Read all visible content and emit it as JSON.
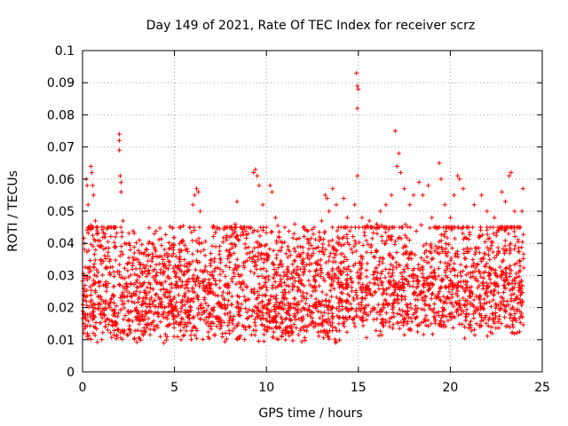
{
  "chart_data": {
    "type": "scatter",
    "title": "Day 149 of 2021, Rate Of TEC Index for receiver scrz",
    "xlabel": "GPS time / hours",
    "ylabel": "ROTI / TECUs",
    "xlim": [
      0,
      25
    ],
    "ylim": [
      0,
      0.1
    ],
    "x_ticks": [
      0,
      5,
      10,
      15,
      20,
      25
    ],
    "x_tick_labels": [
      "0",
      "5",
      "10",
      "15",
      "20",
      "25"
    ],
    "y_ticks": [
      0,
      0.01,
      0.02,
      0.03,
      0.04,
      0.05,
      0.06,
      0.07,
      0.08,
      0.09,
      0.1
    ],
    "y_tick_labels": [
      "0",
      "0.01",
      "0.02",
      "0.03",
      "0.04",
      "0.05",
      "0.06",
      "0.07",
      "0.08",
      "0.09",
      "0.1"
    ],
    "grid": true,
    "marker": "+",
    "color": "#ff0000",
    "series": [
      {
        "name": "ROTI",
        "description": "dense scatter of ROTI values, bulk between 0.008 and 0.03 TECU/min across 0–24 h",
        "points": [
          [
            0.1,
            0.025
          ],
          [
            0.2,
            0.06
          ],
          [
            0.25,
            0.058
          ],
          [
            0.3,
            0.052
          ],
          [
            0.45,
            0.064
          ],
          [
            0.5,
            0.062
          ],
          [
            0.55,
            0.058
          ],
          [
            0.6,
            0.055
          ],
          [
            0.7,
            0.047
          ],
          [
            0.8,
            0.043
          ],
          [
            1.0,
            0.039
          ],
          [
            1.2,
            0.042
          ],
          [
            1.5,
            0.035
          ],
          [
            1.8,
            0.039
          ],
          [
            2.0,
            0.074
          ],
          [
            2.0,
            0.072
          ],
          [
            2.0,
            0.069
          ],
          [
            2.05,
            0.061
          ],
          [
            2.1,
            0.059
          ],
          [
            2.1,
            0.056
          ],
          [
            2.2,
            0.047
          ],
          [
            2.3,
            0.04
          ],
          [
            2.6,
            0.038
          ],
          [
            3.0,
            0.035
          ],
          [
            3.2,
            0.037
          ],
          [
            3.5,
            0.038
          ],
          [
            3.8,
            0.04
          ],
          [
            4.0,
            0.036
          ],
          [
            4.2,
            0.036
          ],
          [
            4.5,
            0.033
          ],
          [
            5.0,
            0.031
          ],
          [
            5.3,
            0.035
          ],
          [
            5.6,
            0.038
          ],
          [
            6.0,
            0.052
          ],
          [
            6.1,
            0.055
          ],
          [
            6.2,
            0.057
          ],
          [
            6.3,
            0.056
          ],
          [
            6.4,
            0.05
          ],
          [
            6.6,
            0.038
          ],
          [
            7.0,
            0.035
          ],
          [
            7.5,
            0.034
          ],
          [
            8.0,
            0.038
          ],
          [
            8.2,
            0.043
          ],
          [
            8.3,
            0.046
          ],
          [
            8.4,
            0.053
          ],
          [
            8.5,
            0.041
          ],
          [
            9.0,
            0.043
          ],
          [
            9.3,
            0.062
          ],
          [
            9.4,
            0.063
          ],
          [
            9.5,
            0.061
          ],
          [
            9.6,
            0.058
          ],
          [
            9.8,
            0.052
          ],
          [
            10.0,
            0.045
          ],
          [
            10.2,
            0.058
          ],
          [
            10.3,
            0.056
          ],
          [
            10.5,
            0.048
          ],
          [
            11.0,
            0.045
          ],
          [
            11.5,
            0.043
          ],
          [
            12.0,
            0.045
          ],
          [
            12.3,
            0.04
          ],
          [
            12.6,
            0.045
          ],
          [
            13.0,
            0.047
          ],
          [
            13.2,
            0.055
          ],
          [
            13.3,
            0.054
          ],
          [
            13.4,
            0.05
          ],
          [
            13.6,
            0.057
          ],
          [
            13.8,
            0.052
          ],
          [
            14.2,
            0.054
          ],
          [
            14.4,
            0.048
          ],
          [
            14.8,
            0.052
          ],
          [
            14.9,
            0.093
          ],
          [
            14.95,
            0.089
          ],
          [
            15.0,
            0.088
          ],
          [
            14.95,
            0.082
          ],
          [
            14.95,
            0.061
          ],
          [
            15.2,
            0.048
          ],
          [
            15.6,
            0.047
          ],
          [
            16.0,
            0.046
          ],
          [
            16.2,
            0.05
          ],
          [
            16.5,
            0.052
          ],
          [
            16.8,
            0.055
          ],
          [
            17.0,
            0.075
          ],
          [
            17.1,
            0.064
          ],
          [
            17.2,
            0.068
          ],
          [
            17.3,
            0.062
          ],
          [
            17.5,
            0.057
          ],
          [
            17.8,
            0.052
          ],
          [
            18.0,
            0.055
          ],
          [
            18.3,
            0.059
          ],
          [
            18.5,
            0.055
          ],
          [
            18.8,
            0.058
          ],
          [
            19.0,
            0.048
          ],
          [
            19.4,
            0.065
          ],
          [
            19.5,
            0.06
          ],
          [
            19.7,
            0.052
          ],
          [
            20.0,
            0.048
          ],
          [
            20.2,
            0.055
          ],
          [
            20.4,
            0.061
          ],
          [
            20.5,
            0.06
          ],
          [
            20.7,
            0.057
          ],
          [
            21.0,
            0.045
          ],
          [
            21.3,
            0.052
          ],
          [
            21.7,
            0.055
          ],
          [
            22.0,
            0.05
          ],
          [
            22.4,
            0.048
          ],
          [
            22.8,
            0.056
          ],
          [
            23.0,
            0.053
          ],
          [
            23.2,
            0.061
          ],
          [
            23.3,
            0.062
          ],
          [
            23.5,
            0.05
          ],
          [
            23.7,
            0.045
          ],
          [
            23.9,
            0.05
          ],
          [
            23.95,
            0.057
          ]
        ]
      }
    ]
  }
}
